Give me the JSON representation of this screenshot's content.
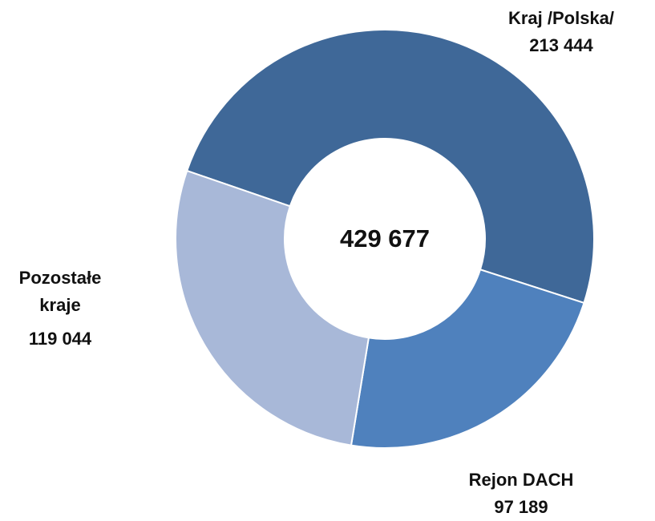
{
  "chart_data": {
    "type": "donut",
    "categories": [
      "Kraj /Polska/",
      "Rejon DACH",
      "Pozostałe kraje"
    ],
    "values": [
      213444,
      97189,
      119044
    ],
    "value_labels": [
      "213 444",
      "97 189",
      "119 044"
    ],
    "colors": [
      "#3f6898",
      "#4f81bd",
      "#a8b8d8"
    ],
    "center_label": "429 677"
  }
}
